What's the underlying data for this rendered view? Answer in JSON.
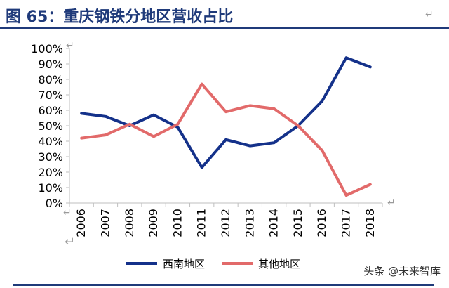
{
  "page": {
    "title": "图 65：重庆钢铁分地区营收占比",
    "watermark": "头条 @未来智库",
    "return_mark": "↵"
  },
  "colors": {
    "title": "#1f3a7a",
    "series_southwest": "#14318a",
    "series_other": "#e26a6a",
    "axis": "#bfbfbf"
  },
  "chart_data": {
    "type": "line",
    "title": "",
    "xlabel": "",
    "ylabel": "",
    "categories": [
      "2006",
      "2007",
      "2008",
      "2009",
      "2010",
      "2011",
      "2012",
      "2013",
      "2014",
      "2015",
      "2016",
      "2017",
      "2018"
    ],
    "y_tick_labels": [
      "0%",
      "10%",
      "20%",
      "30%",
      "40%",
      "50%",
      "60%",
      "70%",
      "80%",
      "90%",
      "100%"
    ],
    "ylim": [
      0,
      100
    ],
    "grid": false,
    "legend_position": "bottom",
    "series": [
      {
        "name": "西南地区",
        "color": "#14318a",
        "values": [
          58,
          56,
          50,
          57,
          49,
          23,
          41,
          37,
          39,
          50,
          66,
          94,
          88
        ]
      },
      {
        "name": "其他地区",
        "color": "#e26a6a",
        "values": [
          42,
          44,
          51,
          43,
          51,
          77,
          59,
          63,
          61,
          50,
          34,
          5,
          12
        ]
      }
    ]
  }
}
